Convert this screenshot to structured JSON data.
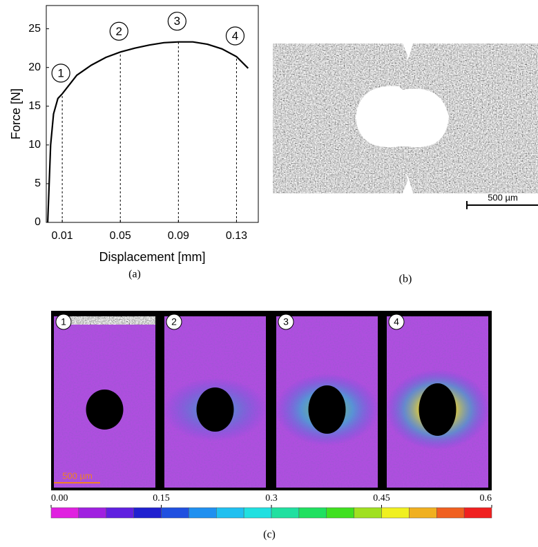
{
  "chart_data": {
    "type": "line",
    "x_label": "Displacement [mm]",
    "y_label": "Force [N]",
    "caption": "(a)",
    "x": [
      0,
      0.002,
      0.004,
      0.007,
      0.01,
      0.02,
      0.03,
      0.04,
      0.05,
      0.06,
      0.07,
      0.08,
      0.09,
      0.1,
      0.11,
      0.12,
      0.13,
      0.138
    ],
    "series": [
      {
        "color": "#000000",
        "values": [
          0,
          10,
          14,
          16,
          16.6,
          19,
          20.3,
          21.3,
          22,
          22.5,
          22.9,
          23.2,
          23.3,
          23.3,
          23,
          22.4,
          21.4,
          19.9
        ]
      }
    ],
    "xlim": [
      -0.001,
      0.145
    ],
    "ylim": [
      0,
      28
    ],
    "xticks": [
      0.01,
      0.05,
      0.09,
      0.13
    ],
    "yticks": [
      0,
      5,
      10,
      15,
      20,
      25
    ],
    "annotations": [
      {
        "label": "1",
        "x": 0.01
      },
      {
        "label": "2",
        "x": 0.05
      },
      {
        "label": "3",
        "x": 0.09
      },
      {
        "label": "4",
        "x": 0.13
      }
    ]
  },
  "panel_b": {
    "scale_bar": "500 µm",
    "caption": "(b)"
  },
  "panel_c": {
    "frames": [
      "1",
      "2",
      "3",
      "4"
    ],
    "scale_bar": "500 µm",
    "caption": "(c)",
    "colorbar": {
      "lim": [
        0,
        0.6
      ],
      "ticks": [
        {
          "value": 0,
          "label": "0.00"
        },
        0.15,
        0.3,
        0.45,
        0.6
      ],
      "colors": [
        "#e020e0",
        "#a020e0",
        "#6020e0",
        "#2020d0",
        "#2050e0",
        "#2090f0",
        "#20c0f0",
        "#20e0e0",
        "#20e0a0",
        "#20e060",
        "#40e020",
        "#a0e020",
        "#f0f020",
        "#f0b020",
        "#f06020",
        "#f02020"
      ]
    }
  }
}
